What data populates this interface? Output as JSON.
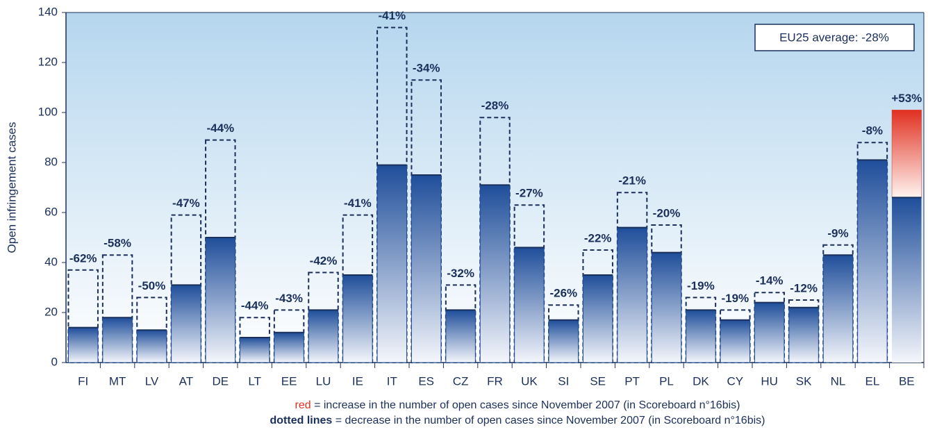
{
  "chart_data": {
    "type": "bar",
    "y_label": "Open infringement cases",
    "categories": [
      "FI",
      "MT",
      "LV",
      "AT",
      "DE",
      "LT",
      "EE",
      "LU",
      "IE",
      "IT",
      "ES",
      "CZ",
      "FR",
      "UK",
      "SI",
      "SE",
      "PT",
      "PL",
      "DK",
      "CY",
      "HU",
      "SK",
      "NL",
      "EL",
      "BE"
    ],
    "series": [
      {
        "color": "#1f4e9a",
        "values": [
          14,
          18,
          13,
          31,
          50,
          10,
          12,
          21,
          35,
          79,
          75,
          21,
          71,
          46,
          17,
          35,
          54,
          44,
          21,
          17,
          24,
          22,
          43,
          81,
          101
        ]
      },
      {
        "color": "#1a2f5a",
        "values": [
          37,
          43,
          26,
          59,
          89,
          18,
          21,
          36,
          59,
          134,
          113,
          31,
          98,
          63,
          23,
          45,
          68,
          55,
          26,
          21,
          28,
          25,
          47,
          88,
          66
        ]
      }
    ],
    "changes": {
      "values": [
        -62,
        -58,
        -50,
        -47,
        -44,
        -44,
        -43,
        -42,
        -41,
        -41,
        -34,
        -32,
        -28,
        -27,
        -26,
        -22,
        -21,
        -20,
        -19,
        -19,
        -14,
        -12,
        -9,
        -8,
        53
      ],
      "value_labels": [
        "-62%",
        "-58%",
        "-50%",
        "-47%",
        "-44%",
        "-44%",
        "-43%",
        "-42%",
        "-41%",
        "-41%",
        "-34%",
        "-32%",
        "-28%",
        "-27%",
        "-26%",
        "-22%",
        "-21%",
        "-20%",
        "-19%",
        "-19%",
        "-14%",
        "-12%",
        "-9%",
        "-8%",
        "+53%"
      ]
    },
    "increase_color": "#e03020",
    "ylim": [
      0,
      140
    ],
    "yticks": [
      0,
      20,
      40,
      60,
      80,
      100,
      120,
      140
    ],
    "annotation": "EU25 average: -28%",
    "notes": [
      {
        "key": "red",
        "text": " = increase in the number of open cases since November 2007 (in Scoreboard n°16bis)"
      },
      {
        "key": "dotted lines",
        "text": " = decrease in the number of open cases since November 2007 (in Scoreboard n°16bis)"
      }
    ]
  }
}
